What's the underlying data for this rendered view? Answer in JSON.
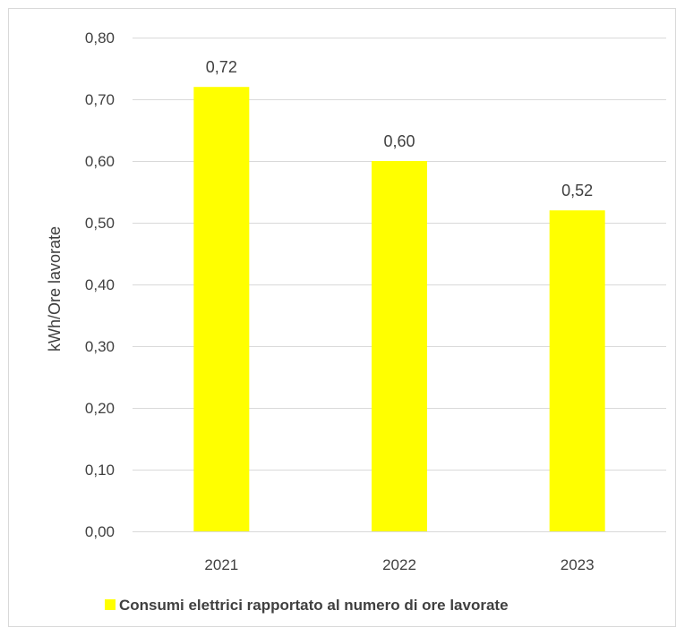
{
  "chart_data": {
    "type": "bar",
    "title": "",
    "xlabel": "",
    "ylabel": "kWh/Ore lavorate",
    "categories": [
      "2021",
      "2022",
      "2023"
    ],
    "series": [
      {
        "name": "Consumi elettrici rapportato al numero di ore lavorate",
        "values": [
          0.72,
          0.6,
          0.52
        ],
        "labels": [
          "0,72",
          "0,60",
          "0,52"
        ],
        "color": "#ffff00"
      }
    ],
    "ylim": [
      0,
      0.8
    ],
    "yticks": [
      0,
      0.1,
      0.2,
      0.3,
      0.4,
      0.5,
      0.6,
      0.7,
      0.8
    ],
    "ytick_labels": [
      "0,00",
      "0,10",
      "0,20",
      "0,30",
      "0,40",
      "0,50",
      "0,60",
      "0,70",
      "0,80"
    ],
    "grid": true,
    "gridline_color": "#d9d9d9",
    "legend_position": "bottom"
  }
}
